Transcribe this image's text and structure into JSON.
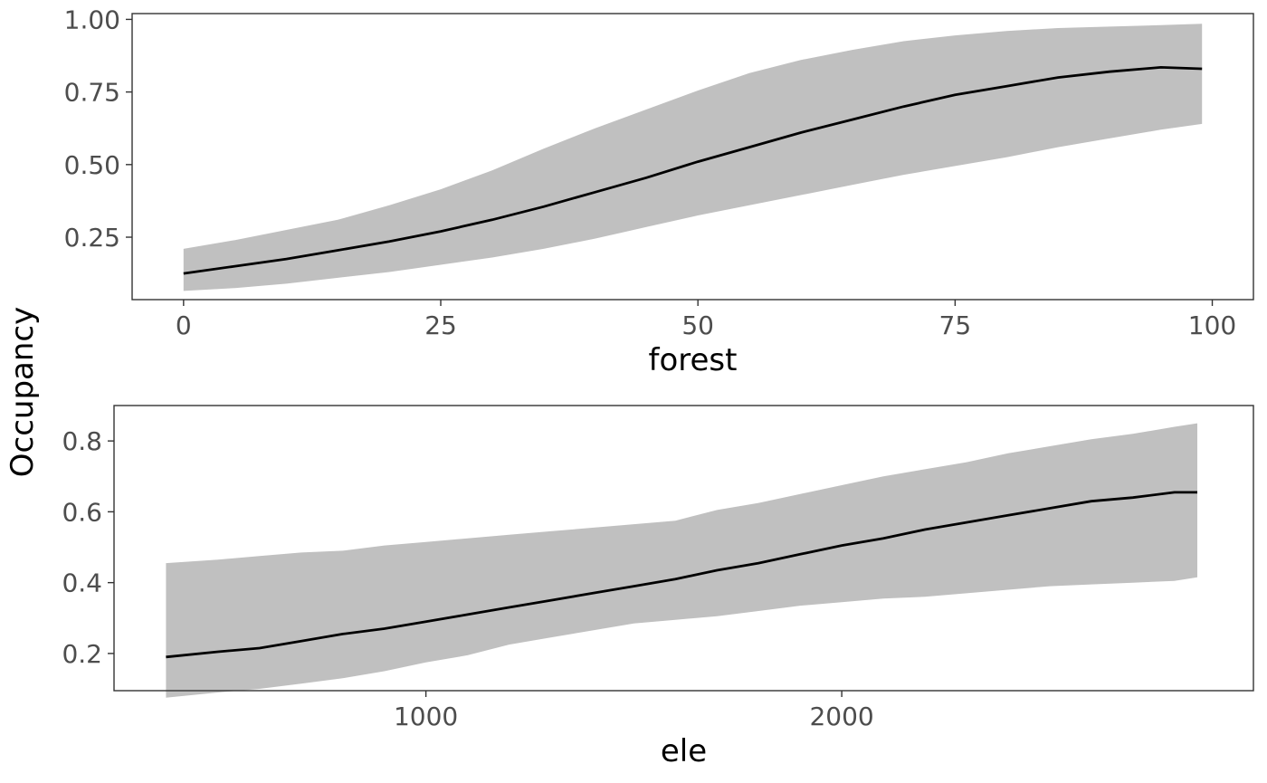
{
  "colors": {
    "ribbon": "#c0c0c0",
    "line": "#000000"
  },
  "ylabel": "Occupancy",
  "chart_data": [
    {
      "type": "line",
      "title": "",
      "xlabel": "forest",
      "ylabel": "Occupancy",
      "xlim": [
        -5,
        104
      ],
      "ylim": [
        0.035,
        1.02
      ],
      "xticks": [
        0,
        25,
        50,
        75,
        100
      ],
      "xtick_labels": [
        "0",
        "25",
        "50",
        "75",
        "100"
      ],
      "yticks": [
        0.25,
        0.5,
        0.75,
        1.0
      ],
      "ytick_labels": [
        "0.25",
        "0.50",
        "0.75",
        "1.00"
      ],
      "grid": false,
      "series": [
        {
          "x": [
            0,
            5,
            10,
            15,
            20,
            25,
            30,
            35,
            40,
            45,
            50,
            55,
            60,
            65,
            70,
            75,
            80,
            85,
            90,
            95,
            99
          ],
          "y": [
            0.125,
            0.15,
            0.175,
            0.205,
            0.235,
            0.27,
            0.31,
            0.355,
            0.405,
            0.455,
            0.51,
            0.56,
            0.61,
            0.655,
            0.7,
            0.74,
            0.77,
            0.8,
            0.82,
            0.835,
            0.83
          ],
          "lower": [
            0.065,
            0.075,
            0.09,
            0.11,
            0.13,
            0.155,
            0.18,
            0.21,
            0.245,
            0.285,
            0.325,
            0.36,
            0.395,
            0.43,
            0.465,
            0.495,
            0.525,
            0.56,
            0.59,
            0.62,
            0.64
          ],
          "upper": [
            0.21,
            0.24,
            0.275,
            0.31,
            0.36,
            0.415,
            0.48,
            0.555,
            0.625,
            0.69,
            0.755,
            0.815,
            0.86,
            0.895,
            0.925,
            0.945,
            0.96,
            0.97,
            0.975,
            0.98,
            0.985
          ]
        }
      ]
    },
    {
      "type": "line",
      "title": "",
      "xlabel": "ele",
      "ylabel": "Occupancy",
      "xlim": [
        250,
        2990
      ],
      "ylim": [
        0.095,
        0.9
      ],
      "xticks": [
        1000,
        2000
      ],
      "xtick_labels": [
        "1000",
        "2000"
      ],
      "yticks": [
        0.2,
        0.4,
        0.6,
        0.8
      ],
      "ytick_labels": [
        "0.2",
        "0.4",
        "0.6",
        "0.8"
      ],
      "grid": false,
      "series": [
        {
          "x": [
            375,
            500,
            600,
            700,
            800,
            900,
            1000,
            1100,
            1200,
            1300,
            1400,
            1500,
            1600,
            1700,
            1800,
            1900,
            2000,
            2100,
            2200,
            2300,
            2400,
            2500,
            2600,
            2700,
            2800,
            2855
          ],
          "y": [
            0.19,
            0.205,
            0.215,
            0.235,
            0.255,
            0.27,
            0.29,
            0.31,
            0.33,
            0.35,
            0.37,
            0.39,
            0.41,
            0.435,
            0.455,
            0.48,
            0.505,
            0.525,
            0.55,
            0.57,
            0.59,
            0.61,
            0.63,
            0.64,
            0.655,
            0.655
          ],
          "lower": [
            0.075,
            0.09,
            0.1,
            0.115,
            0.13,
            0.15,
            0.175,
            0.195,
            0.225,
            0.245,
            0.265,
            0.285,
            0.295,
            0.305,
            0.32,
            0.335,
            0.345,
            0.355,
            0.36,
            0.37,
            0.38,
            0.39,
            0.395,
            0.4,
            0.405,
            0.415
          ],
          "upper": [
            0.455,
            0.465,
            0.475,
            0.485,
            0.49,
            0.505,
            0.515,
            0.525,
            0.535,
            0.545,
            0.555,
            0.565,
            0.575,
            0.605,
            0.625,
            0.65,
            0.675,
            0.7,
            0.72,
            0.74,
            0.765,
            0.785,
            0.805,
            0.82,
            0.84,
            0.85
          ]
        }
      ]
    }
  ]
}
